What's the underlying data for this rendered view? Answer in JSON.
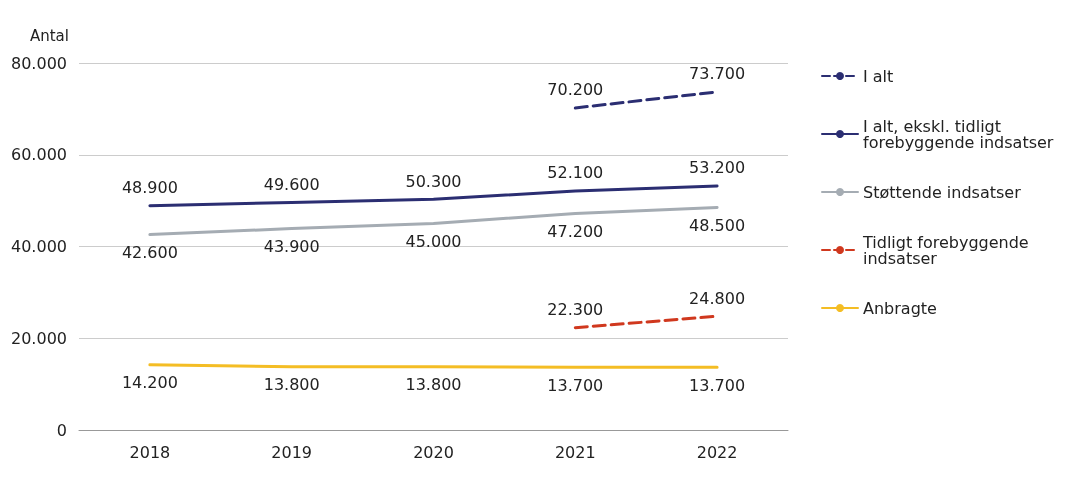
{
  "chart_data": {
    "type": "line",
    "ylabel": "Antal",
    "categories": [
      "2018",
      "2019",
      "2020",
      "2021",
      "2022"
    ],
    "ylim": [
      0,
      80000
    ],
    "yticks": [
      {
        "value": 0,
        "label": "0"
      },
      {
        "value": 20000,
        "label": "20.000"
      },
      {
        "value": 40000,
        "label": "40.000"
      },
      {
        "value": 60000,
        "label": "60.000"
      },
      {
        "value": 80000,
        "label": "80.000"
      }
    ],
    "grid": "y",
    "legend": "right",
    "marker": "none",
    "series": [
      {
        "name": "I alt",
        "color": "#2b2e72",
        "line_style": "dashed",
        "values": [
          null,
          null,
          null,
          70200,
          73700
        ],
        "value_labels": [
          null,
          null,
          null,
          "70.200",
          "73.700"
        ]
      },
      {
        "name": "I alt, ekskl. tidligt forebyggende indsatser",
        "color": "#2b2e72",
        "line_style": "solid",
        "values": [
          48900,
          49600,
          50300,
          52100,
          53200
        ],
        "value_labels": [
          "48.900",
          "49.600",
          "50.300",
          "52.100",
          "53.200"
        ]
      },
      {
        "name": "Støttende indsatser",
        "color": "#a5acb3",
        "line_style": "solid",
        "values": [
          42600,
          43900,
          45000,
          47200,
          48500
        ],
        "value_labels": [
          "42.600",
          "43.900",
          "45.000",
          "47.200",
          "48.500"
        ]
      },
      {
        "name": "Tidligt forebyggende indsatser",
        "color": "#d0381e",
        "line_style": "dashed",
        "values": [
          null,
          null,
          null,
          22300,
          24800
        ],
        "value_labels": [
          null,
          null,
          null,
          "22.300",
          "24.800"
        ]
      },
      {
        "name": "Anbragte",
        "color": "#f4bd24",
        "line_style": "solid",
        "values": [
          14200,
          13800,
          13800,
          13700,
          13700
        ],
        "value_labels": [
          "14.200",
          "13.800",
          "13.800",
          "13.700",
          "13.700"
        ]
      }
    ]
  }
}
